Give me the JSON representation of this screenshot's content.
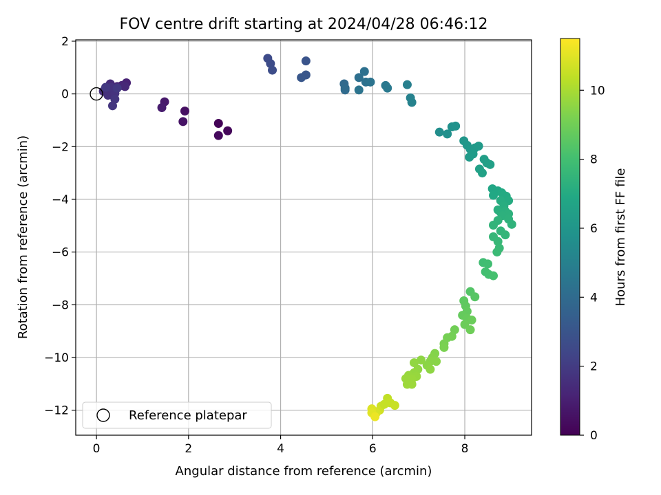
{
  "chart_data": {
    "type": "scatter",
    "title": "FOV centre drift starting at 2024/04/28 06:46:12",
    "xlabel": "Angular distance from reference (arcmin)",
    "ylabel": "Rotation from reference (arcmin)",
    "xlim": [
      -0.45,
      9.45
    ],
    "ylim": [
      -12.95,
      2.05
    ],
    "xticks": [
      0,
      2,
      4,
      6,
      8
    ],
    "yticks": [
      2,
      0,
      -2,
      -4,
      -6,
      -8,
      -10,
      -12
    ],
    "xtick_labels": [
      "0",
      "2",
      "4",
      "6",
      "8"
    ],
    "ytick_labels": [
      "2",
      "0",
      "−2",
      "−4",
      "−6",
      "−8",
      "−10",
      "−12"
    ],
    "grid": true,
    "colormap": "viridis",
    "colorbar": {
      "label": "Hours from first FF file",
      "range": [
        0,
        11.5
      ],
      "ticks": [
        0,
        2,
        4,
        6,
        8,
        10
      ],
      "tick_labels": [
        "0",
        "2",
        "4",
        "6",
        "8",
        "10"
      ]
    },
    "legend": {
      "placement": "lower-left",
      "entries": [
        "Reference platepar"
      ]
    },
    "reference_point": {
      "x": 0,
      "y": 0
    },
    "points": [
      {
        "x": 2.65,
        "y": -1.12,
        "t": 0.1
      },
      {
        "x": 2.85,
        "y": -1.4,
        "t": 0.2
      },
      {
        "x": 2.65,
        "y": -1.58,
        "t": 0.3
      },
      {
        "x": 1.92,
        "y": -0.65,
        "t": 0.5
      },
      {
        "x": 1.88,
        "y": -1.05,
        "t": 0.6
      },
      {
        "x": 1.48,
        "y": -0.3,
        "t": 0.8
      },
      {
        "x": 1.42,
        "y": -0.52,
        "t": 0.9
      },
      {
        "x": 0.65,
        "y": 0.42,
        "t": 1.1
      },
      {
        "x": 0.55,
        "y": 0.32,
        "t": 1.2
      },
      {
        "x": 0.45,
        "y": 0.28,
        "t": 1.3
      },
      {
        "x": 0.62,
        "y": 0.28,
        "t": 1.3
      },
      {
        "x": 0.3,
        "y": 0.38,
        "t": 1.4
      },
      {
        "x": 0.22,
        "y": 0.2,
        "t": 1.4
      },
      {
        "x": 0.15,
        "y": 0.1,
        "t": 1.5
      },
      {
        "x": 0.28,
        "y": 0.05,
        "t": 1.5
      },
      {
        "x": 0.38,
        "y": 0.15,
        "t": 1.6
      },
      {
        "x": 0.25,
        "y": -0.05,
        "t": 1.6
      },
      {
        "x": 0.4,
        "y": 0.02,
        "t": 1.7
      },
      {
        "x": 0.32,
        "y": 0.25,
        "t": 1.7
      },
      {
        "x": 0.4,
        "y": -0.2,
        "t": 1.8
      },
      {
        "x": 0.35,
        "y": -0.45,
        "t": 1.8
      },
      {
        "x": 0.2,
        "y": 0.25,
        "t": 1.9
      },
      {
        "x": 0.45,
        "y": 0.22,
        "t": 1.9
      },
      {
        "x": 3.72,
        "y": 1.35,
        "t": 2.6
      },
      {
        "x": 3.78,
        "y": 1.15,
        "t": 2.65
      },
      {
        "x": 3.82,
        "y": 0.9,
        "t": 2.7
      },
      {
        "x": 4.55,
        "y": 1.25,
        "t": 3.0
      },
      {
        "x": 4.55,
        "y": 0.72,
        "t": 3.05
      },
      {
        "x": 4.45,
        "y": 0.62,
        "t": 3.1
      },
      {
        "x": 5.38,
        "y": 0.38,
        "t": 3.9
      },
      {
        "x": 5.4,
        "y": 0.22,
        "t": 3.95
      },
      {
        "x": 5.4,
        "y": 0.15,
        "t": 4.0
      },
      {
        "x": 5.7,
        "y": 0.62,
        "t": 4.2
      },
      {
        "x": 5.82,
        "y": 0.85,
        "t": 4.25
      },
      {
        "x": 5.85,
        "y": 0.45,
        "t": 4.3
      },
      {
        "x": 5.95,
        "y": 0.45,
        "t": 4.35
      },
      {
        "x": 5.7,
        "y": 0.15,
        "t": 4.4
      },
      {
        "x": 6.28,
        "y": 0.32,
        "t": 4.6
      },
      {
        "x": 6.32,
        "y": 0.22,
        "t": 4.65
      },
      {
        "x": 6.75,
        "y": 0.35,
        "t": 4.9
      },
      {
        "x": 6.82,
        "y": -0.15,
        "t": 5.0
      },
      {
        "x": 6.85,
        "y": -0.32,
        "t": 5.05
      },
      {
        "x": 7.45,
        "y": -1.45,
        "t": 5.6
      },
      {
        "x": 7.62,
        "y": -1.52,
        "t": 5.7
      },
      {
        "x": 7.72,
        "y": -1.25,
        "t": 5.75
      },
      {
        "x": 7.8,
        "y": -1.22,
        "t": 5.8
      },
      {
        "x": 7.98,
        "y": -1.78,
        "t": 6.0
      },
      {
        "x": 8.05,
        "y": -1.95,
        "t": 6.05
      },
      {
        "x": 8.12,
        "y": -2.1,
        "t": 6.1
      },
      {
        "x": 8.22,
        "y": -2.05,
        "t": 6.15
      },
      {
        "x": 8.3,
        "y": -1.98,
        "t": 6.2
      },
      {
        "x": 8.1,
        "y": -2.4,
        "t": 6.2
      },
      {
        "x": 8.18,
        "y": -2.28,
        "t": 6.25
      },
      {
        "x": 8.42,
        "y": -2.48,
        "t": 6.4
      },
      {
        "x": 8.48,
        "y": -2.62,
        "t": 6.45
      },
      {
        "x": 8.55,
        "y": -2.68,
        "t": 6.5
      },
      {
        "x": 8.32,
        "y": -2.85,
        "t": 6.5
      },
      {
        "x": 8.38,
        "y": -3.0,
        "t": 6.55
      },
      {
        "x": 8.6,
        "y": -3.6,
        "t": 6.8
      },
      {
        "x": 8.72,
        "y": -3.68,
        "t": 6.85
      },
      {
        "x": 8.62,
        "y": -3.85,
        "t": 6.9
      },
      {
        "x": 8.8,
        "y": -3.75,
        "t": 6.95
      },
      {
        "x": 8.85,
        "y": -3.85,
        "t": 7.0
      },
      {
        "x": 8.9,
        "y": -3.88,
        "t": 7.0
      },
      {
        "x": 8.95,
        "y": -4.05,
        "t": 7.05
      },
      {
        "x": 8.78,
        "y": -4.05,
        "t": 7.1
      },
      {
        "x": 8.85,
        "y": -4.25,
        "t": 7.15
      },
      {
        "x": 8.72,
        "y": -4.4,
        "t": 7.2
      },
      {
        "x": 8.78,
        "y": -4.5,
        "t": 7.25
      },
      {
        "x": 8.88,
        "y": -4.45,
        "t": 7.25
      },
      {
        "x": 8.95,
        "y": -4.55,
        "t": 7.3
      },
      {
        "x": 8.82,
        "y": -4.62,
        "t": 7.3
      },
      {
        "x": 8.95,
        "y": -4.75,
        "t": 7.35
      },
      {
        "x": 9.02,
        "y": -4.95,
        "t": 7.4
      },
      {
        "x": 8.72,
        "y": -4.8,
        "t": 7.4
      },
      {
        "x": 8.62,
        "y": -4.98,
        "t": 7.45
      },
      {
        "x": 8.78,
        "y": -5.2,
        "t": 7.5
      },
      {
        "x": 8.88,
        "y": -5.35,
        "t": 7.55
      },
      {
        "x": 8.62,
        "y": -5.42,
        "t": 7.6
      },
      {
        "x": 8.72,
        "y": -5.6,
        "t": 7.65
      },
      {
        "x": 8.75,
        "y": -5.85,
        "t": 7.7
      },
      {
        "x": 8.7,
        "y": -6.0,
        "t": 7.75
      },
      {
        "x": 8.4,
        "y": -6.4,
        "t": 7.9
      },
      {
        "x": 8.5,
        "y": -6.45,
        "t": 7.95
      },
      {
        "x": 8.45,
        "y": -6.75,
        "t": 8.0
      },
      {
        "x": 8.52,
        "y": -6.85,
        "t": 8.05
      },
      {
        "x": 8.62,
        "y": -6.9,
        "t": 8.1
      },
      {
        "x": 8.12,
        "y": -7.5,
        "t": 8.4
      },
      {
        "x": 8.22,
        "y": -7.7,
        "t": 8.45
      },
      {
        "x": 7.98,
        "y": -7.85,
        "t": 8.6
      },
      {
        "x": 8.02,
        "y": -8.05,
        "t": 8.65
      },
      {
        "x": 8.05,
        "y": -8.25,
        "t": 8.7
      },
      {
        "x": 7.95,
        "y": -8.4,
        "t": 8.75
      },
      {
        "x": 8.05,
        "y": -8.52,
        "t": 8.8
      },
      {
        "x": 8.15,
        "y": -8.58,
        "t": 8.85
      },
      {
        "x": 8.0,
        "y": -8.75,
        "t": 8.9
      },
      {
        "x": 8.12,
        "y": -8.95,
        "t": 8.95
      },
      {
        "x": 7.78,
        "y": -8.95,
        "t": 9.0
      },
      {
        "x": 7.72,
        "y": -9.2,
        "t": 9.05
      },
      {
        "x": 7.62,
        "y": -9.25,
        "t": 9.1
      },
      {
        "x": 7.55,
        "y": -9.48,
        "t": 9.15
      },
      {
        "x": 7.55,
        "y": -9.62,
        "t": 9.2
      },
      {
        "x": 7.35,
        "y": -9.85,
        "t": 9.35
      },
      {
        "x": 7.3,
        "y": -10.0,
        "t": 9.4
      },
      {
        "x": 7.25,
        "y": -10.15,
        "t": 9.45
      },
      {
        "x": 7.38,
        "y": -10.15,
        "t": 9.45
      },
      {
        "x": 7.18,
        "y": -10.3,
        "t": 9.5
      },
      {
        "x": 7.25,
        "y": -10.45,
        "t": 9.55
      },
      {
        "x": 7.05,
        "y": -10.1,
        "t": 9.55
      },
      {
        "x": 6.98,
        "y": -10.45,
        "t": 9.6
      },
      {
        "x": 6.9,
        "y": -10.58,
        "t": 9.65
      },
      {
        "x": 6.95,
        "y": -10.72,
        "t": 9.7
      },
      {
        "x": 6.78,
        "y": -10.68,
        "t": 9.7
      },
      {
        "x": 6.85,
        "y": -10.82,
        "t": 9.75
      },
      {
        "x": 6.72,
        "y": -10.8,
        "t": 9.75
      },
      {
        "x": 6.75,
        "y": -11.02,
        "t": 9.8
      },
      {
        "x": 6.85,
        "y": -11.02,
        "t": 9.8
      },
      {
        "x": 6.9,
        "y": -10.2,
        "t": 9.6
      },
      {
        "x": 6.32,
        "y": -11.55,
        "t": 10.4
      },
      {
        "x": 6.38,
        "y": -11.72,
        "t": 10.5
      },
      {
        "x": 6.48,
        "y": -11.82,
        "t": 10.55
      },
      {
        "x": 6.18,
        "y": -11.85,
        "t": 10.6
      },
      {
        "x": 6.15,
        "y": -12.0,
        "t": 10.7
      },
      {
        "x": 6.08,
        "y": -12.1,
        "t": 10.8
      },
      {
        "x": 5.98,
        "y": -11.95,
        "t": 10.9
      },
      {
        "x": 5.98,
        "y": -12.1,
        "t": 11.0
      },
      {
        "x": 6.05,
        "y": -12.25,
        "t": 11.2
      },
      {
        "x": 6.25,
        "y": -11.78,
        "t": 10.5
      }
    ]
  }
}
